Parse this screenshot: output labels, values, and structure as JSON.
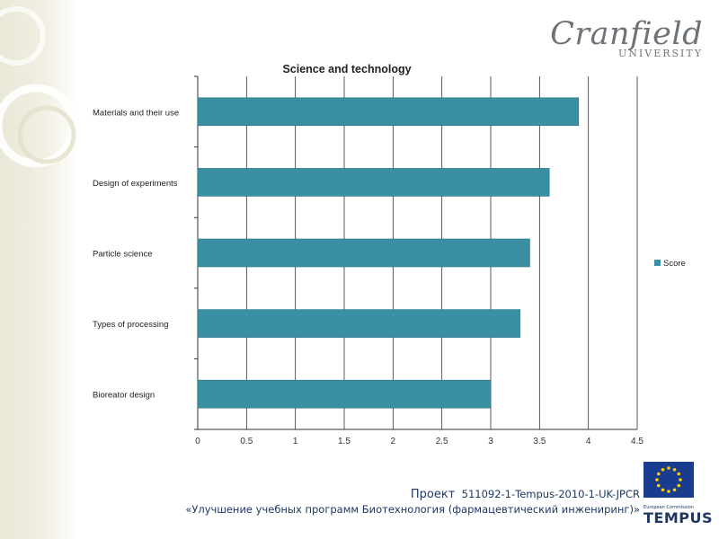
{
  "logo": {
    "main": "Cranfield",
    "sub": "UNIVERSITY"
  },
  "footer": {
    "project_label": "Проект",
    "project_code": "511092-1-Tempus-2010-1-UK-JPCR",
    "subtitle": "«Улучшение учебных программ Биотехнология (фармацевтический инжениринг)»"
  },
  "tempus": {
    "caption": "European Commission",
    "name": "TEMPUS",
    "flag_color": "#1a3c8f",
    "star_color": "#ffcc00"
  },
  "chart_data": {
    "type": "bar",
    "orientation": "horizontal",
    "title": "Science and technology",
    "categories": [
      "Materials and their use",
      "Design of experiments",
      "Particle science",
      "Types of processing",
      "Bioreator design"
    ],
    "series": [
      {
        "name": "Score",
        "values": [
          3.9,
          3.6,
          3.4,
          3.3,
          3.0
        ]
      }
    ],
    "xlim": [
      0,
      4.5
    ],
    "xticks": [
      "0",
      "0.5",
      "1",
      "1.5",
      "2",
      "2.5",
      "3",
      "3.5",
      "4",
      "4.5"
    ],
    "grid": true,
    "legend": "right",
    "bar_color": "#3a8fa3"
  }
}
